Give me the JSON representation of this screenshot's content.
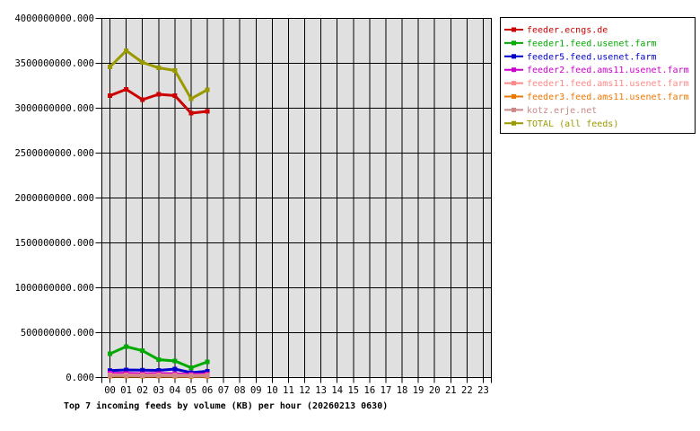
{
  "chart_data": {
    "type": "line",
    "title": "Top 7 incoming feeds by volume (KB) per hour (20260213 0630)",
    "xlabel": "",
    "ylabel": "",
    "ylim": [
      0,
      4000000000
    ],
    "grid": true,
    "plot_background": "#e0e0e0",
    "grid_color": "#000000",
    "legend_position": "outside-top-right",
    "x_tick_labels": [
      "00",
      "01",
      "02",
      "03",
      "04",
      "05",
      "06",
      "07",
      "08",
      "09",
      "10",
      "11",
      "12",
      "13",
      "14",
      "15",
      "16",
      "17",
      "18",
      "19",
      "20",
      "21",
      "22",
      "23"
    ],
    "y_tick_values": [
      0,
      500000000,
      1000000000,
      1500000000,
      2000000000,
      2500000000,
      3000000000,
      3500000000,
      4000000000
    ],
    "y_tick_labels": [
      "0.000",
      "500000000.000",
      "1000000000.000",
      "1500000000.000",
      "2000000000.000",
      "2500000000.000",
      "3000000000.000",
      "3500000000.000",
      "4000000000.000"
    ],
    "hours_plotted": [
      0,
      1,
      2,
      3,
      4,
      5,
      6
    ],
    "series": [
      {
        "name": "feeder.ecngs.de",
        "color": "#cc0000",
        "values": [
          3140000000,
          3210000000,
          3095000000,
          3155000000,
          3140000000,
          2945000000,
          2965000000
        ]
      },
      {
        "name": "feeder1.feed.usenet.farm",
        "color": "#00aa00",
        "values": [
          265000000,
          345000000,
          300000000,
          200000000,
          185000000,
          110000000,
          175000000
        ]
      },
      {
        "name": "feeder5.feed.usenet.farm",
        "color": "#0000cc",
        "values": [
          78000000,
          85000000,
          82000000,
          80000000,
          95000000,
          55000000,
          70000000
        ]
      },
      {
        "name": "feeder2.feed.ams11.usenet.farm",
        "color": "#cc00cc",
        "values": [
          50000000,
          47000000,
          42000000,
          46000000,
          42000000,
          36000000,
          40000000
        ]
      },
      {
        "name": "feeder1.feed.ams11.usenet.farm",
        "color": "#ff8888",
        "values": [
          30000000,
          30000000,
          28000000,
          30000000,
          28000000,
          24000000,
          27000000
        ]
      },
      {
        "name": "feeder3.feed.ams11.usenet.farm",
        "color": "#ee7700",
        "values": [
          15000000,
          15000000,
          14000000,
          15000000,
          14000000,
          12000000,
          13000000
        ]
      },
      {
        "name": "kotz.erje.net",
        "color": "#cc8888",
        "values": [
          22000000,
          22000000,
          20000000,
          22000000,
          20000000,
          18000000,
          20000000
        ]
      },
      {
        "name": "TOTAL (all feeds)",
        "color": "#999900",
        "values": [
          3460000000,
          3640000000,
          3510000000,
          3450000000,
          3420000000,
          3105000000,
          3205000000
        ]
      }
    ]
  }
}
